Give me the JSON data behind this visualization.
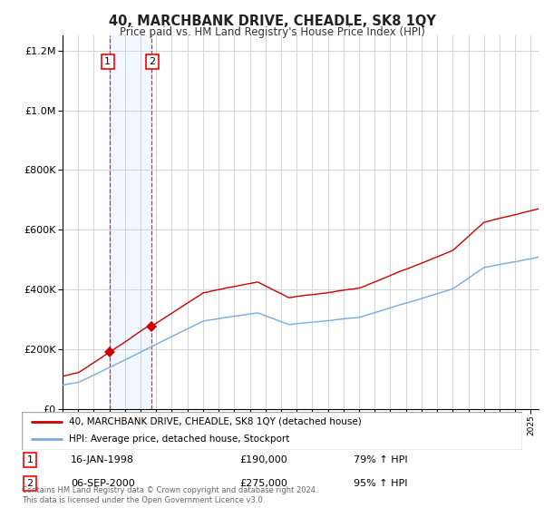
{
  "title": "40, MARCHBANK DRIVE, CHEADLE, SK8 1QY",
  "subtitle": "Price paid vs. HM Land Registry's House Price Index (HPI)",
  "legend_line1": "40, MARCHBANK DRIVE, CHEADLE, SK8 1QY (detached house)",
  "legend_line2": "HPI: Average price, detached house, Stockport",
  "table_rows": [
    {
      "num": "1",
      "date": "16-JAN-1998",
      "price": "£190,000",
      "hpi": "79% ↑ HPI"
    },
    {
      "num": "2",
      "date": "06-SEP-2000",
      "price": "£275,000",
      "hpi": "95% ↑ HPI"
    }
  ],
  "footnote": "Contains HM Land Registry data © Crown copyright and database right 2024.\nThis data is licensed under the Open Government Licence v3.0.",
  "sale1_year": 1998.04,
  "sale1_price": 190000,
  "sale2_year": 2000.68,
  "sale2_price": 275000,
  "hpi_color": "#7aaadd",
  "price_color": "#cc0000",
  "sale_marker_color": "#cc0000",
  "bg_color": "#ffffff",
  "grid_color": "#cccccc",
  "highlight_color": "#ddeeff",
  "ylim": [
    0,
    1250000
  ],
  "xlim_start": 1995,
  "xlim_end": 2025.5
}
